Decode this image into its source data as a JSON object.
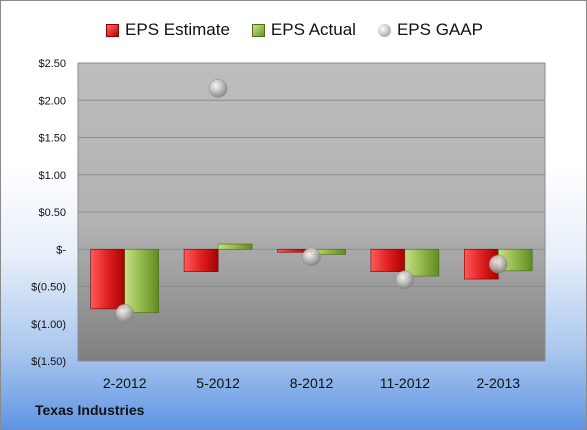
{
  "company": "Texas Industries",
  "chart_data": {
    "type": "bar",
    "categories": [
      "2-2012",
      "5-2012",
      "8-2012",
      "11-2012",
      "2-2013"
    ],
    "series": [
      {
        "name": "EPS Estimate",
        "kind": "bar",
        "color": "#d42020",
        "values": [
          -0.8,
          -0.3,
          -0.04,
          -0.3,
          -0.4
        ]
      },
      {
        "name": "EPS Actual",
        "kind": "bar",
        "color": "#8db03e",
        "values": [
          -0.85,
          0.07,
          -0.07,
          -0.36,
          -0.29
        ]
      },
      {
        "name": "EPS GAAP",
        "kind": "scatter",
        "color": "#b8b8b8",
        "values": [
          -0.86,
          2.16,
          -0.1,
          -0.41,
          -0.2
        ]
      }
    ],
    "yticks": [
      "$2.50",
      "$2.00",
      "$1.50",
      "$1.00",
      "$0.50",
      "$-",
      "$(0.50)",
      "$(1.00)",
      "$(1.50)"
    ],
    "ylim": [
      -1.5,
      2.5
    ],
    "xlabel": "",
    "ylabel": "",
    "title": "",
    "legend_position": "top",
    "grid": true
  }
}
